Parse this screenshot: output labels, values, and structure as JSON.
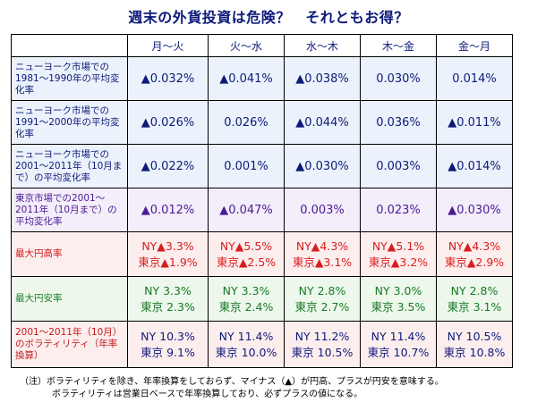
{
  "title": "週末の外貨投資は危険？　それともお得？",
  "header": [
    "",
    "月～火",
    "火～水",
    "水～木",
    "木～金",
    "金～月"
  ],
  "rows": [
    {
      "label": "ニューヨーク市場での1981～1990年の平均変化率",
      "values": [
        "▲0.032%",
        "▲0.041%",
        "▲0.038%",
        "0.030%",
        "0.014%"
      ]
    },
    {
      "label": "ニューヨーク市場での1991～2000年の平均変化率",
      "values": [
        "▲0.026%",
        "0.026%",
        "▲0.044%",
        "0.036%",
        "▲0.011%"
      ]
    },
    {
      "label": "ニューヨーク市場での2001～2011年（10月まで）の平均変化率",
      "values": [
        "▲0.022%",
        "0.001%",
        "▲0.030%",
        "0.003%",
        "▲0.014%"
      ]
    },
    {
      "label": "東京市場での2001～2011年（10月まで）の平均変化率",
      "values": [
        "▲0.012%",
        "▲0.047%",
        "0.003%",
        "0.023%",
        "▲0.030%"
      ]
    },
    {
      "label": "最大円高率",
      "values": [
        {
          "line1": "NY▲3.3%",
          "line2": "東京▲1.9%"
        },
        {
          "line1": "NY▲5.5%",
          "line2": "東京▲2.5%"
        },
        {
          "line1": "NY▲4.3%",
          "line2": "東京▲3.1%"
        },
        {
          "line1": "NY▲5.1%",
          "line2": "東京▲3.2%"
        },
        {
          "line1": "NY▲4.3%",
          "line2": "東京▲2.9%"
        }
      ]
    },
    {
      "label": "最大円安率",
      "values": [
        {
          "line1": "NY 3.3%",
          "line2": "東京 2.3%"
        },
        {
          "line1": "NY 3.3%",
          "line2": "東京 2.4%"
        },
        {
          "line1": "NY 2.8%",
          "line2": "東京 2.7%"
        },
        {
          "line1": "NY 3.0%",
          "line2": "東京 3.5%"
        },
        {
          "line1": "NY 2.8%",
          "line2": "東京 3.1%"
        }
      ]
    },
    {
      "label": "2001～2011年（10月）のボラティリティ（年率換算）",
      "values": [
        {
          "line1": "NY 10.3%",
          "line2": "東京 9.1%"
        },
        {
          "line1": "NY 11.4%",
          "line2": "東京 10.0%"
        },
        {
          "line1": "NY 11.2%",
          "line2": "東京 10.5%"
        },
        {
          "line1": "NY 11.4%",
          "line2": "東京 10.7%"
        },
        {
          "line1": "NY 10.5%",
          "line2": "東京 10.8%"
        }
      ]
    }
  ],
  "notes": [
    "（注）ボラティリティを除き、年率換算をしておらず、マイナス（▲）が円高、プラスが円安を意味する。",
    "ボラティリティは営業日ベースで年率換算しており、必ずプラスの値になる。"
  ],
  "colors": {
    "header_text": "#0d1a7a",
    "ny_rows_bg": "#ecf2fb",
    "tokyo_row_bg": "#f3eefa",
    "red_rows_bg": "#fdeeee",
    "green_row_bg": "#edf7ec"
  }
}
